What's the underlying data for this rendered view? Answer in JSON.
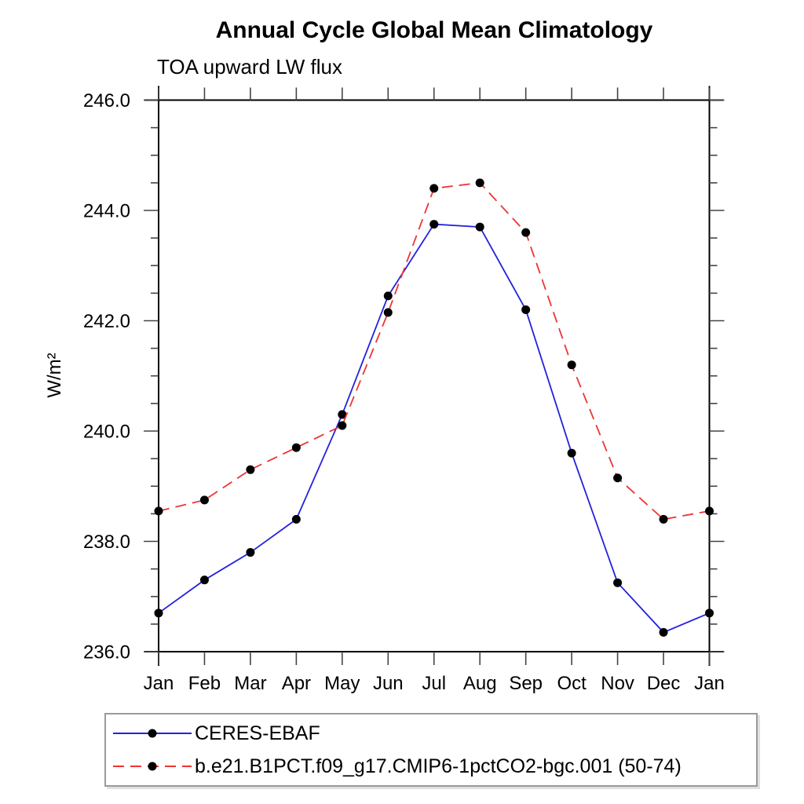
{
  "window": {
    "background": "#ffffff"
  },
  "chart_data": {
    "type": "line",
    "title": "Annual Cycle Global Mean Climatology",
    "subtitle": "TOA upward LW flux",
    "ylabel": "W/m²",
    "xlabel": "",
    "categories": [
      "Jan",
      "Feb",
      "Mar",
      "Apr",
      "May",
      "Jun",
      "Jul",
      "Aug",
      "Sep",
      "Oct",
      "Nov",
      "Dec",
      "Jan"
    ],
    "ylim": [
      236.0,
      246.0
    ],
    "ytick_interval": 2.0,
    "ytick_minor_interval": 0.5,
    "ytick_labels": [
      "236.0",
      "238.0",
      "240.0",
      "242.0",
      "244.0",
      "246.0"
    ],
    "grid": false,
    "legend_position": "bottom-left",
    "marker_color": "#000000",
    "axis_color": "#000000",
    "series": [
      {
        "name": "CERES-EBAF",
        "line_style": "solid",
        "color": "#2222dd",
        "marker": "circle",
        "values": [
          236.7,
          237.3,
          237.8,
          238.4,
          240.3,
          242.45,
          243.75,
          243.7,
          242.2,
          239.6,
          237.25,
          236.35,
          236.7
        ]
      },
      {
        "name": "b.e21.B1PCT.f09_g17.CMIP6-1pctCO2-bgc.001 (50-74)",
        "line_style": "dashed",
        "color": "#ee3333",
        "marker": "circle",
        "values": [
          238.55,
          238.75,
          239.3,
          239.7,
          240.1,
          242.15,
          244.4,
          244.5,
          243.6,
          241.2,
          239.15,
          238.4,
          238.55
        ]
      }
    ]
  }
}
